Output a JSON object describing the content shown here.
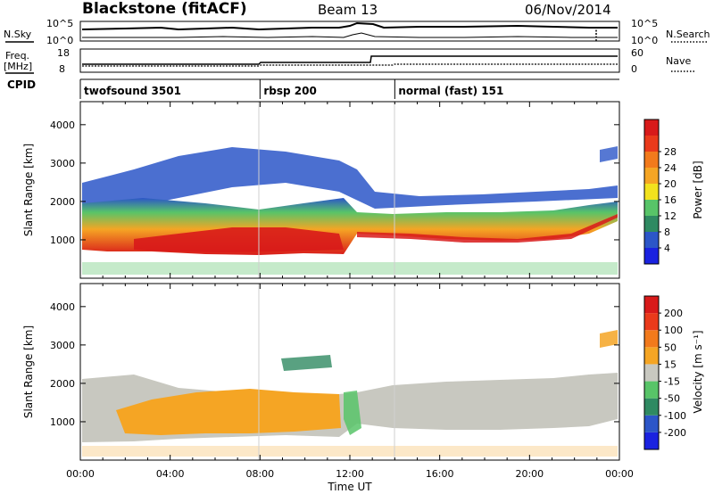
{
  "header": {
    "station": "Blackstone (fitACF)",
    "beam": "Beam 13",
    "date": "06/Nov/2014"
  },
  "noise_panel": {
    "left_label": "N.Sky",
    "right_label": "N.Search",
    "left_ticks": [
      "10^5",
      "10^0"
    ],
    "right_ticks": [
      "10^5",
      "10^0"
    ]
  },
  "freq_panel": {
    "left_label_1": "Freq.",
    "left_label_2": "[MHz]",
    "right_label": "Nave",
    "left_ticks": [
      "18",
      "8"
    ],
    "right_ticks": [
      "60",
      "0"
    ]
  },
  "cpid": {
    "label": "CPID",
    "segments": [
      {
        "name": "twofsound 3501",
        "start_hour": 0
      },
      {
        "name": "rbsp 200",
        "start_hour": 8
      },
      {
        "name": "normal (fast) 151",
        "start_hour": 14
      }
    ]
  },
  "chart_data": [
    {
      "type": "heatmap",
      "title": "",
      "xlabel": "Time UT",
      "ylabel": "Slant Range [km]",
      "xlim": [
        0,
        24
      ],
      "ylim": [
        0,
        4600
      ],
      "x_ticks": [
        "00:00",
        "04:00",
        "08:00",
        "12:00",
        "16:00",
        "20:00",
        "00:00"
      ],
      "y_ticks": [
        "1000",
        "2000",
        "3000",
        "4000"
      ],
      "colorbar": {
        "label": "Power [dB]",
        "ticks": [
          "4",
          "8",
          "12",
          "16",
          "20",
          "24",
          "28"
        ],
        "colors": [
          "#1a22e0",
          "#2c56c8",
          "#2f8a62",
          "#58c468",
          "#f2e21e",
          "#f5a524",
          "#f27a1c",
          "#ea3a1b",
          "#d81a1a"
        ]
      }
    },
    {
      "type": "heatmap",
      "title": "",
      "xlabel": "Time UT",
      "ylabel": "Slant Range [km]",
      "xlim": [
        0,
        24
      ],
      "ylim": [
        0,
        4600
      ],
      "x_ticks": [
        "00:00",
        "04:00",
        "08:00",
        "12:00",
        "16:00",
        "20:00",
        "00:00"
      ],
      "y_ticks": [
        "1000",
        "2000",
        "3000",
        "4000"
      ],
      "colorbar": {
        "label": "Velocity [m s⁻¹]",
        "ticks": [
          "200",
          "100",
          "50",
          "15",
          "-15",
          "-50",
          "-100",
          "-200"
        ],
        "colors": [
          "#1a22e0",
          "#2c56c8",
          "#2f8a62",
          "#58c468",
          "#c8c8c0",
          "#f5a524",
          "#f27a1c",
          "#ea3a1b",
          "#d81a1a"
        ]
      }
    }
  ]
}
